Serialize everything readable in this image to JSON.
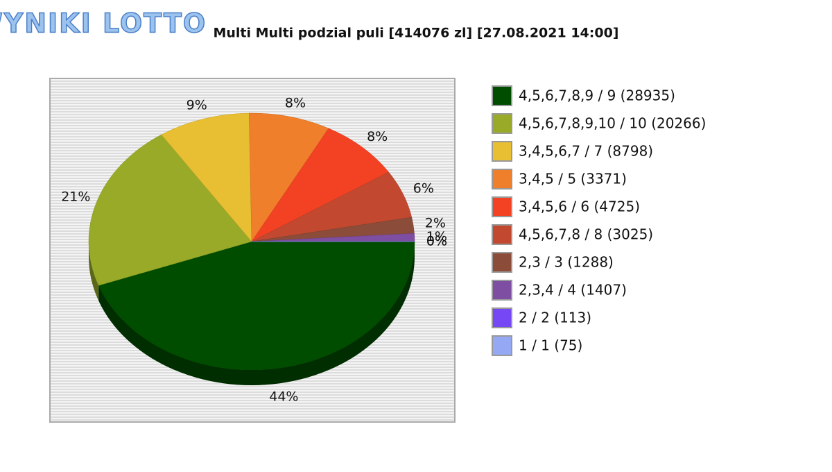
{
  "logo": "WYNIKI LOTTO",
  "chart_data": {
    "type": "pie",
    "title": "Multi Multi podzial puli [414076 zl] [27.08.2021 14:00]",
    "categories": [
      "4,5,6,7,8,9 / 9 (28935)",
      "4,5,6,7,8,9,10 / 10 (20266)",
      "3,4,5,6,7 / 7 (8798)",
      "3,4,5 / 5 (3371)",
      "3,4,5,6 / 6 (4725)",
      "4,5,6,7,8 / 8 (3025)",
      "2,3 / 3 (1288)",
      "2,3,4 / 4 (1407)",
      "2 / 2 (113)",
      "1 / 1 (75)"
    ],
    "values": [
      44,
      21,
      9,
      8,
      8,
      6,
      2,
      1,
      0,
      0
    ],
    "value_labels": [
      "44%",
      "21%",
      "9%",
      "8%",
      "8%",
      "6%",
      "2%",
      "1%",
      "0%",
      "0%"
    ],
    "colors": [
      "#004d00",
      "#98aa28",
      "#e8be33",
      "#ef7f2a",
      "#f24223",
      "#c24830",
      "#8b4c3a",
      "#7e4ea3",
      "#7547f5",
      "#94a8f4"
    ]
  }
}
